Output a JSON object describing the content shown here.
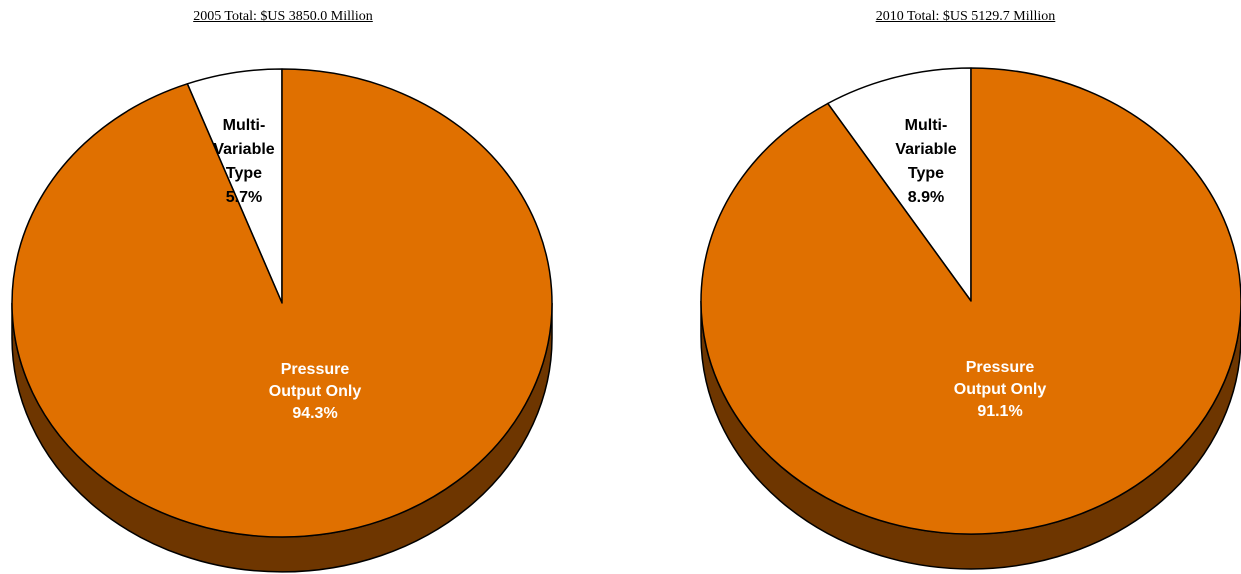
{
  "colors": {
    "main_slice": "#E07000",
    "main_side": "#6E3600",
    "minor_slice": "#FFFFFF",
    "outline": "#000000"
  },
  "chart_data": [
    {
      "type": "pie",
      "title": "2005 Total: $US 3850.0 Million",
      "slices": [
        {
          "label": [
            "Multi-",
            "Variable",
            "Type",
            "5.7%"
          ],
          "value": 5.7,
          "color": "#FFFFFF",
          "text_color": "#000000"
        },
        {
          "label": [
            "Pressure",
            "Output Only",
            "94.3%"
          ],
          "value": 94.3,
          "color": "#E07000",
          "text_color": "#FFFFFF"
        }
      ]
    },
    {
      "type": "pie",
      "title": "2010 Total: $US 5129.7 Million",
      "slices": [
        {
          "label": [
            "Multi-",
            "Variable",
            "Type",
            "8.9%"
          ],
          "value": 8.9,
          "color": "#FFFFFF",
          "text_color": "#000000"
        },
        {
          "label": [
            "Pressure",
            "Output Only",
            "91.1%"
          ],
          "value": 91.1,
          "color": "#E07000",
          "text_color": "#FFFFFF"
        }
      ]
    }
  ]
}
